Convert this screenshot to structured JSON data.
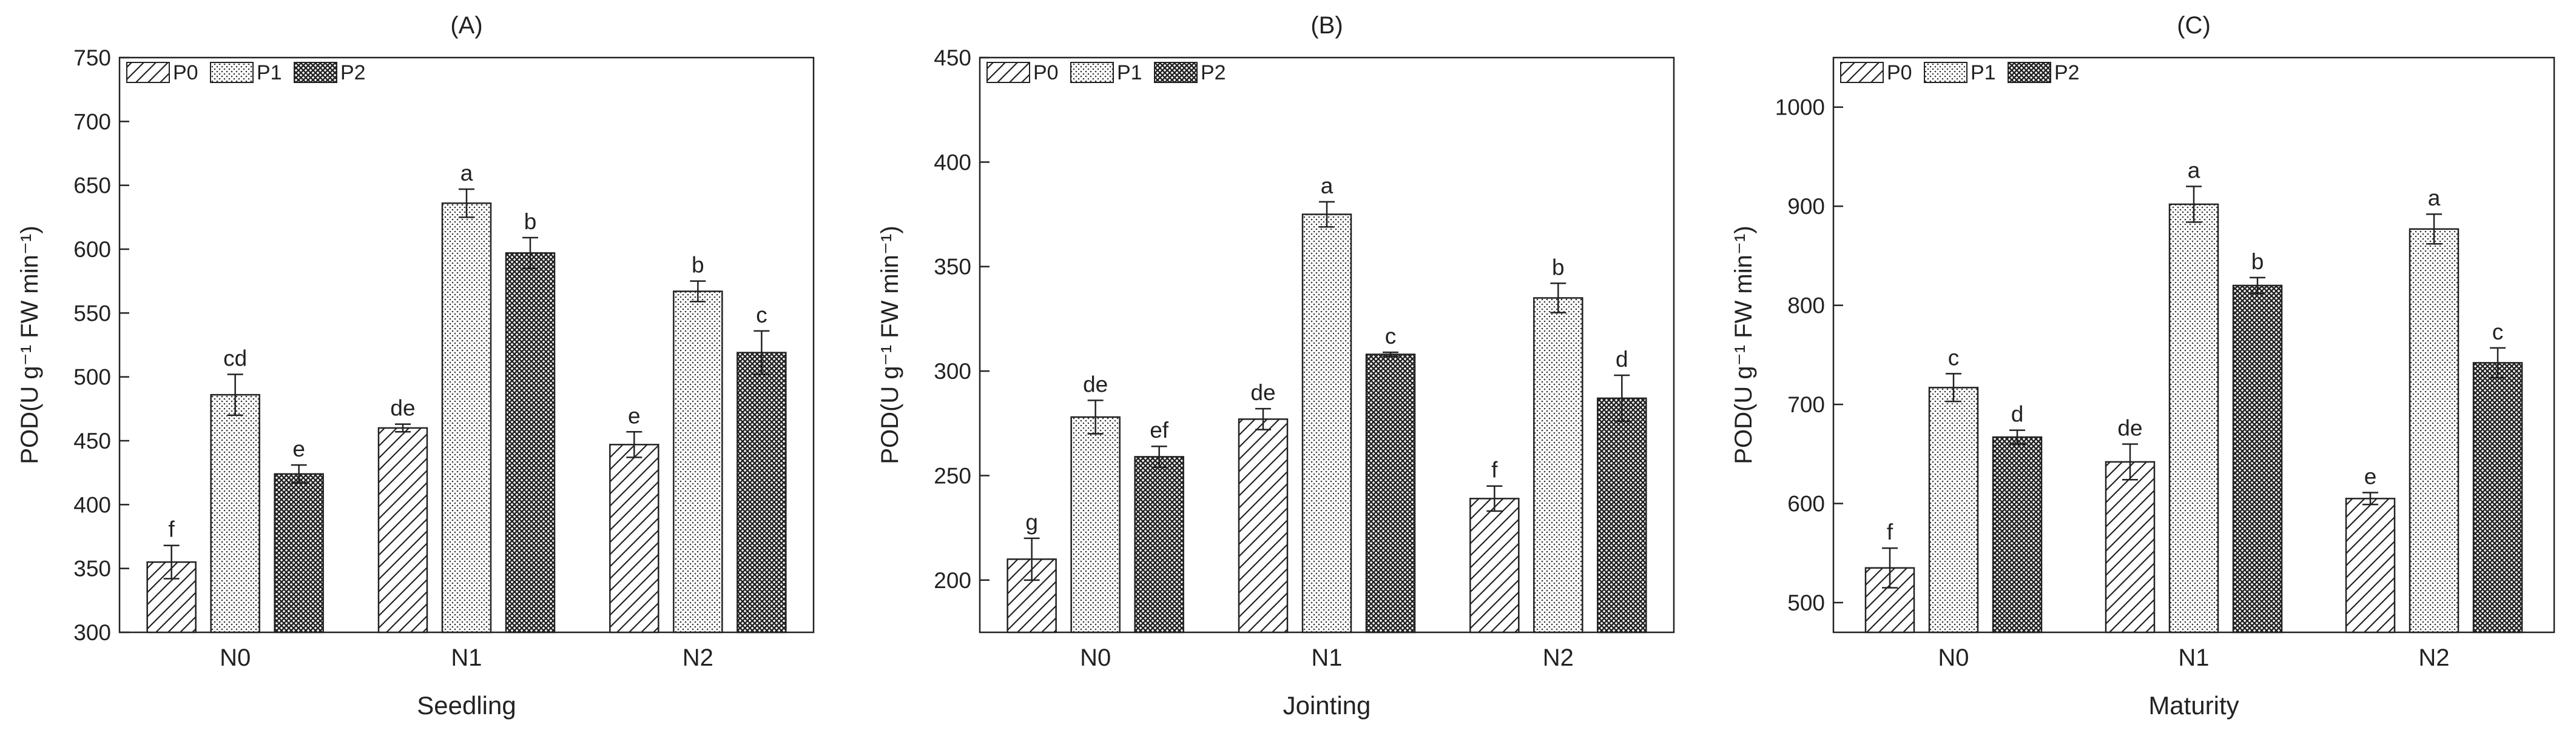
{
  "chart_data": [
    {
      "type": "bar",
      "title": "(A)",
      "xlabel": "Seedling",
      "ylabel": "POD(U g⁻¹ FW min⁻¹)",
      "ylim": [
        300,
        750
      ],
      "yticks": [
        300,
        350,
        400,
        450,
        500,
        550,
        600,
        650,
        700,
        750
      ],
      "categories": [
        "N0",
        "N1",
        "N2"
      ],
      "legend_position": "top-left",
      "series": [
        {
          "name": "P0",
          "pattern": "hatch",
          "values": [
            355,
            460,
            447
          ],
          "errors": [
            13,
            3,
            10
          ],
          "letters": [
            "f",
            "de",
            "e"
          ]
        },
        {
          "name": "P1",
          "pattern": "dots",
          "values": [
            486,
            636,
            567
          ],
          "errors": [
            16,
            11,
            8
          ],
          "letters": [
            "cd",
            "a",
            "b"
          ]
        },
        {
          "name": "P2",
          "pattern": "cross",
          "values": [
            424,
            597,
            519
          ],
          "errors": [
            7,
            12,
            17
          ],
          "letters": [
            "e",
            "b",
            "c"
          ]
        }
      ]
    },
    {
      "type": "bar",
      "title": "(B)",
      "xlabel": "Jointing",
      "ylabel": "POD(U g⁻¹ FW min⁻¹)",
      "ylim": [
        175,
        450
      ],
      "yticks": [
        200,
        250,
        300,
        350,
        400,
        450
      ],
      "categories": [
        "N0",
        "N1",
        "N2"
      ],
      "legend_position": "top-left",
      "series": [
        {
          "name": "P0",
          "pattern": "hatch",
          "values": [
            210,
            277,
            239
          ],
          "errors": [
            10,
            5,
            6
          ],
          "letters": [
            "g",
            "de",
            "f"
          ]
        },
        {
          "name": "P1",
          "pattern": "dots",
          "values": [
            278,
            375,
            335
          ],
          "errors": [
            8,
            6,
            7
          ],
          "letters": [
            "de",
            "a",
            "b"
          ]
        },
        {
          "name": "P2",
          "pattern": "cross",
          "values": [
            259,
            308,
            287
          ],
          "errors": [
            5,
            1,
            11
          ],
          "letters": [
            "ef",
            "c",
            "d"
          ]
        }
      ]
    },
    {
      "type": "bar",
      "title": "(C)",
      "xlabel": "Maturity",
      "ylabel": "POD(U g⁻¹ FW min⁻¹)",
      "ylim": [
        470,
        1050
      ],
      "yticks": [
        500,
        600,
        700,
        800,
        900,
        1000
      ],
      "categories": [
        "N0",
        "N1",
        "N2"
      ],
      "legend_position": "top-left",
      "series": [
        {
          "name": "P0",
          "pattern": "hatch",
          "values": [
            535,
            642,
            605
          ],
          "errors": [
            20,
            18,
            6
          ],
          "letters": [
            "f",
            "de",
            "e"
          ]
        },
        {
          "name": "P1",
          "pattern": "dots",
          "values": [
            717,
            902,
            877
          ],
          "errors": [
            14,
            18,
            15
          ],
          "letters": [
            "c",
            "a",
            "a"
          ]
        },
        {
          "name": "P2",
          "pattern": "cross",
          "values": [
            667,
            820,
            742
          ],
          "errors": [
            7,
            8,
            15
          ],
          "letters": [
            "d",
            "b",
            "c"
          ]
        }
      ]
    }
  ]
}
